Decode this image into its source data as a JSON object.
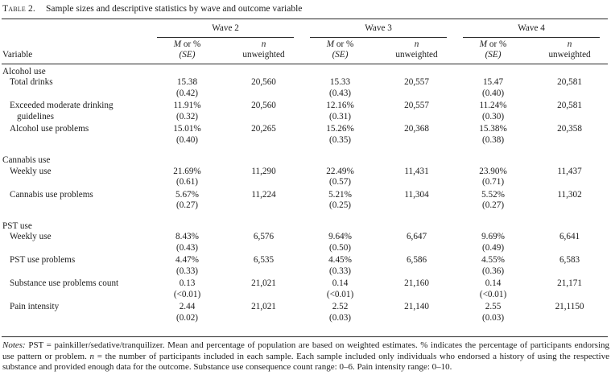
{
  "caption": {
    "label": "Table 2.",
    "title": "Sample sizes and descriptive statistics by wave and outcome variable"
  },
  "header": {
    "variable": "Variable",
    "waves": [
      "Wave 2",
      "Wave 3",
      "Wave 4"
    ],
    "m_label": "M",
    "m_rest": " or %",
    "se_label": "(SE)",
    "n_label": "n",
    "n_rest": "unweighted"
  },
  "rows": [
    {
      "type": "section",
      "label": "Alcohol use"
    },
    {
      "type": "item",
      "label": "Total drinks",
      "cells": [
        {
          "v": "15.38",
          "se": "(0.42)",
          "n": "20,560"
        },
        {
          "v": "15.33",
          "se": "(0.43)",
          "n": "20,557"
        },
        {
          "v": "15.47",
          "se": "(0.40)",
          "n": "20,581"
        }
      ]
    },
    {
      "type": "item",
      "label": "Exceeded moderate drinking guidelines",
      "cells": [
        {
          "v": "11.91%",
          "se": "(0.32)",
          "n": "20,560"
        },
        {
          "v": "12.16%",
          "se": "(0.31)",
          "n": "20,557"
        },
        {
          "v": "11.24%",
          "se": "(0.30)",
          "n": "20,581"
        }
      ]
    },
    {
      "type": "item",
      "label": "Alcohol use problems",
      "cells": [
        {
          "v": "15.01%",
          "se": "(0.40)",
          "n": "20,265"
        },
        {
          "v": "15.26%",
          "se": "(0.35)",
          "n": "20,368"
        },
        {
          "v": "15.38%",
          "se": "(0.38)",
          "n": "20,358"
        }
      ]
    },
    {
      "type": "section",
      "label": "Cannabis use"
    },
    {
      "type": "item",
      "label": "Weekly use",
      "cells": [
        {
          "v": "21.69%",
          "se": "(0.61)",
          "n": "11,290"
        },
        {
          "v": "22.49%",
          "se": "(0.57)",
          "n": "11,431"
        },
        {
          "v": "23.90%",
          "se": "(0.71)",
          "n": "11,437"
        }
      ]
    },
    {
      "type": "item",
      "label": "Cannabis use problems",
      "cells": [
        {
          "v": "5.67%",
          "se": "(0.27)",
          "n": "11,224"
        },
        {
          "v": "5.21%",
          "se": "(0.25)",
          "n": "11,304"
        },
        {
          "v": "5.52%",
          "se": "(0.27)",
          "n": "11,302"
        }
      ]
    },
    {
      "type": "section",
      "label": "PST use"
    },
    {
      "type": "item",
      "label": "Weekly use",
      "cells": [
        {
          "v": "8.43%",
          "se": "(0.43)",
          "n": "6,576"
        },
        {
          "v": "9.64%",
          "se": "(0.50)",
          "n": "6,647"
        },
        {
          "v": "9.69%",
          "se": "(0.49)",
          "n": "6,641"
        }
      ]
    },
    {
      "type": "item",
      "label": "PST use problems",
      "cells": [
        {
          "v": "4.47%",
          "se": "(0.33)",
          "n": "6,535"
        },
        {
          "v": "4.45%",
          "se": "(0.33)",
          "n": "6,586"
        },
        {
          "v": "4.55%",
          "se": "(0.36)",
          "n": "6,583"
        }
      ]
    },
    {
      "type": "item",
      "label": "Substance use problems count",
      "cells": [
        {
          "v": "0.13",
          "se": "(<0.01)",
          "n": "21,021"
        },
        {
          "v": "0.14",
          "se": "(<0.01)",
          "n": "21,160"
        },
        {
          "v": "0.14",
          "se": "(<0.01)",
          "n": "21,171"
        }
      ]
    },
    {
      "type": "item",
      "label": "Pain intensity",
      "cells": [
        {
          "v": "2.44",
          "se": "(0.02)",
          "n": "21,021"
        },
        {
          "v": "2.52",
          "se": "(0.03)",
          "n": "21,140"
        },
        {
          "v": "2.55",
          "se": "(0.03)",
          "n": "21,1150"
        }
      ]
    }
  ],
  "notes": {
    "segments": [
      {
        "t": "Notes:",
        "style": "italic"
      },
      {
        "t": " PST = painkiller/sedative/tranquilizer. Mean and percentage of population are based on weighted estimates. % indicates the percentage of participants endorsing use pattern or problem. ",
        "style": "normal"
      },
      {
        "t": "n",
        "style": "italic"
      },
      {
        "t": " = the number of participants included in each sample. Each sample included only individuals who endorsed a history of using the respective substance and provided enough data for the outcome. Substance use consequence count range: 0–6. Pain intensity range: 0–10.",
        "style": "normal"
      }
    ]
  }
}
